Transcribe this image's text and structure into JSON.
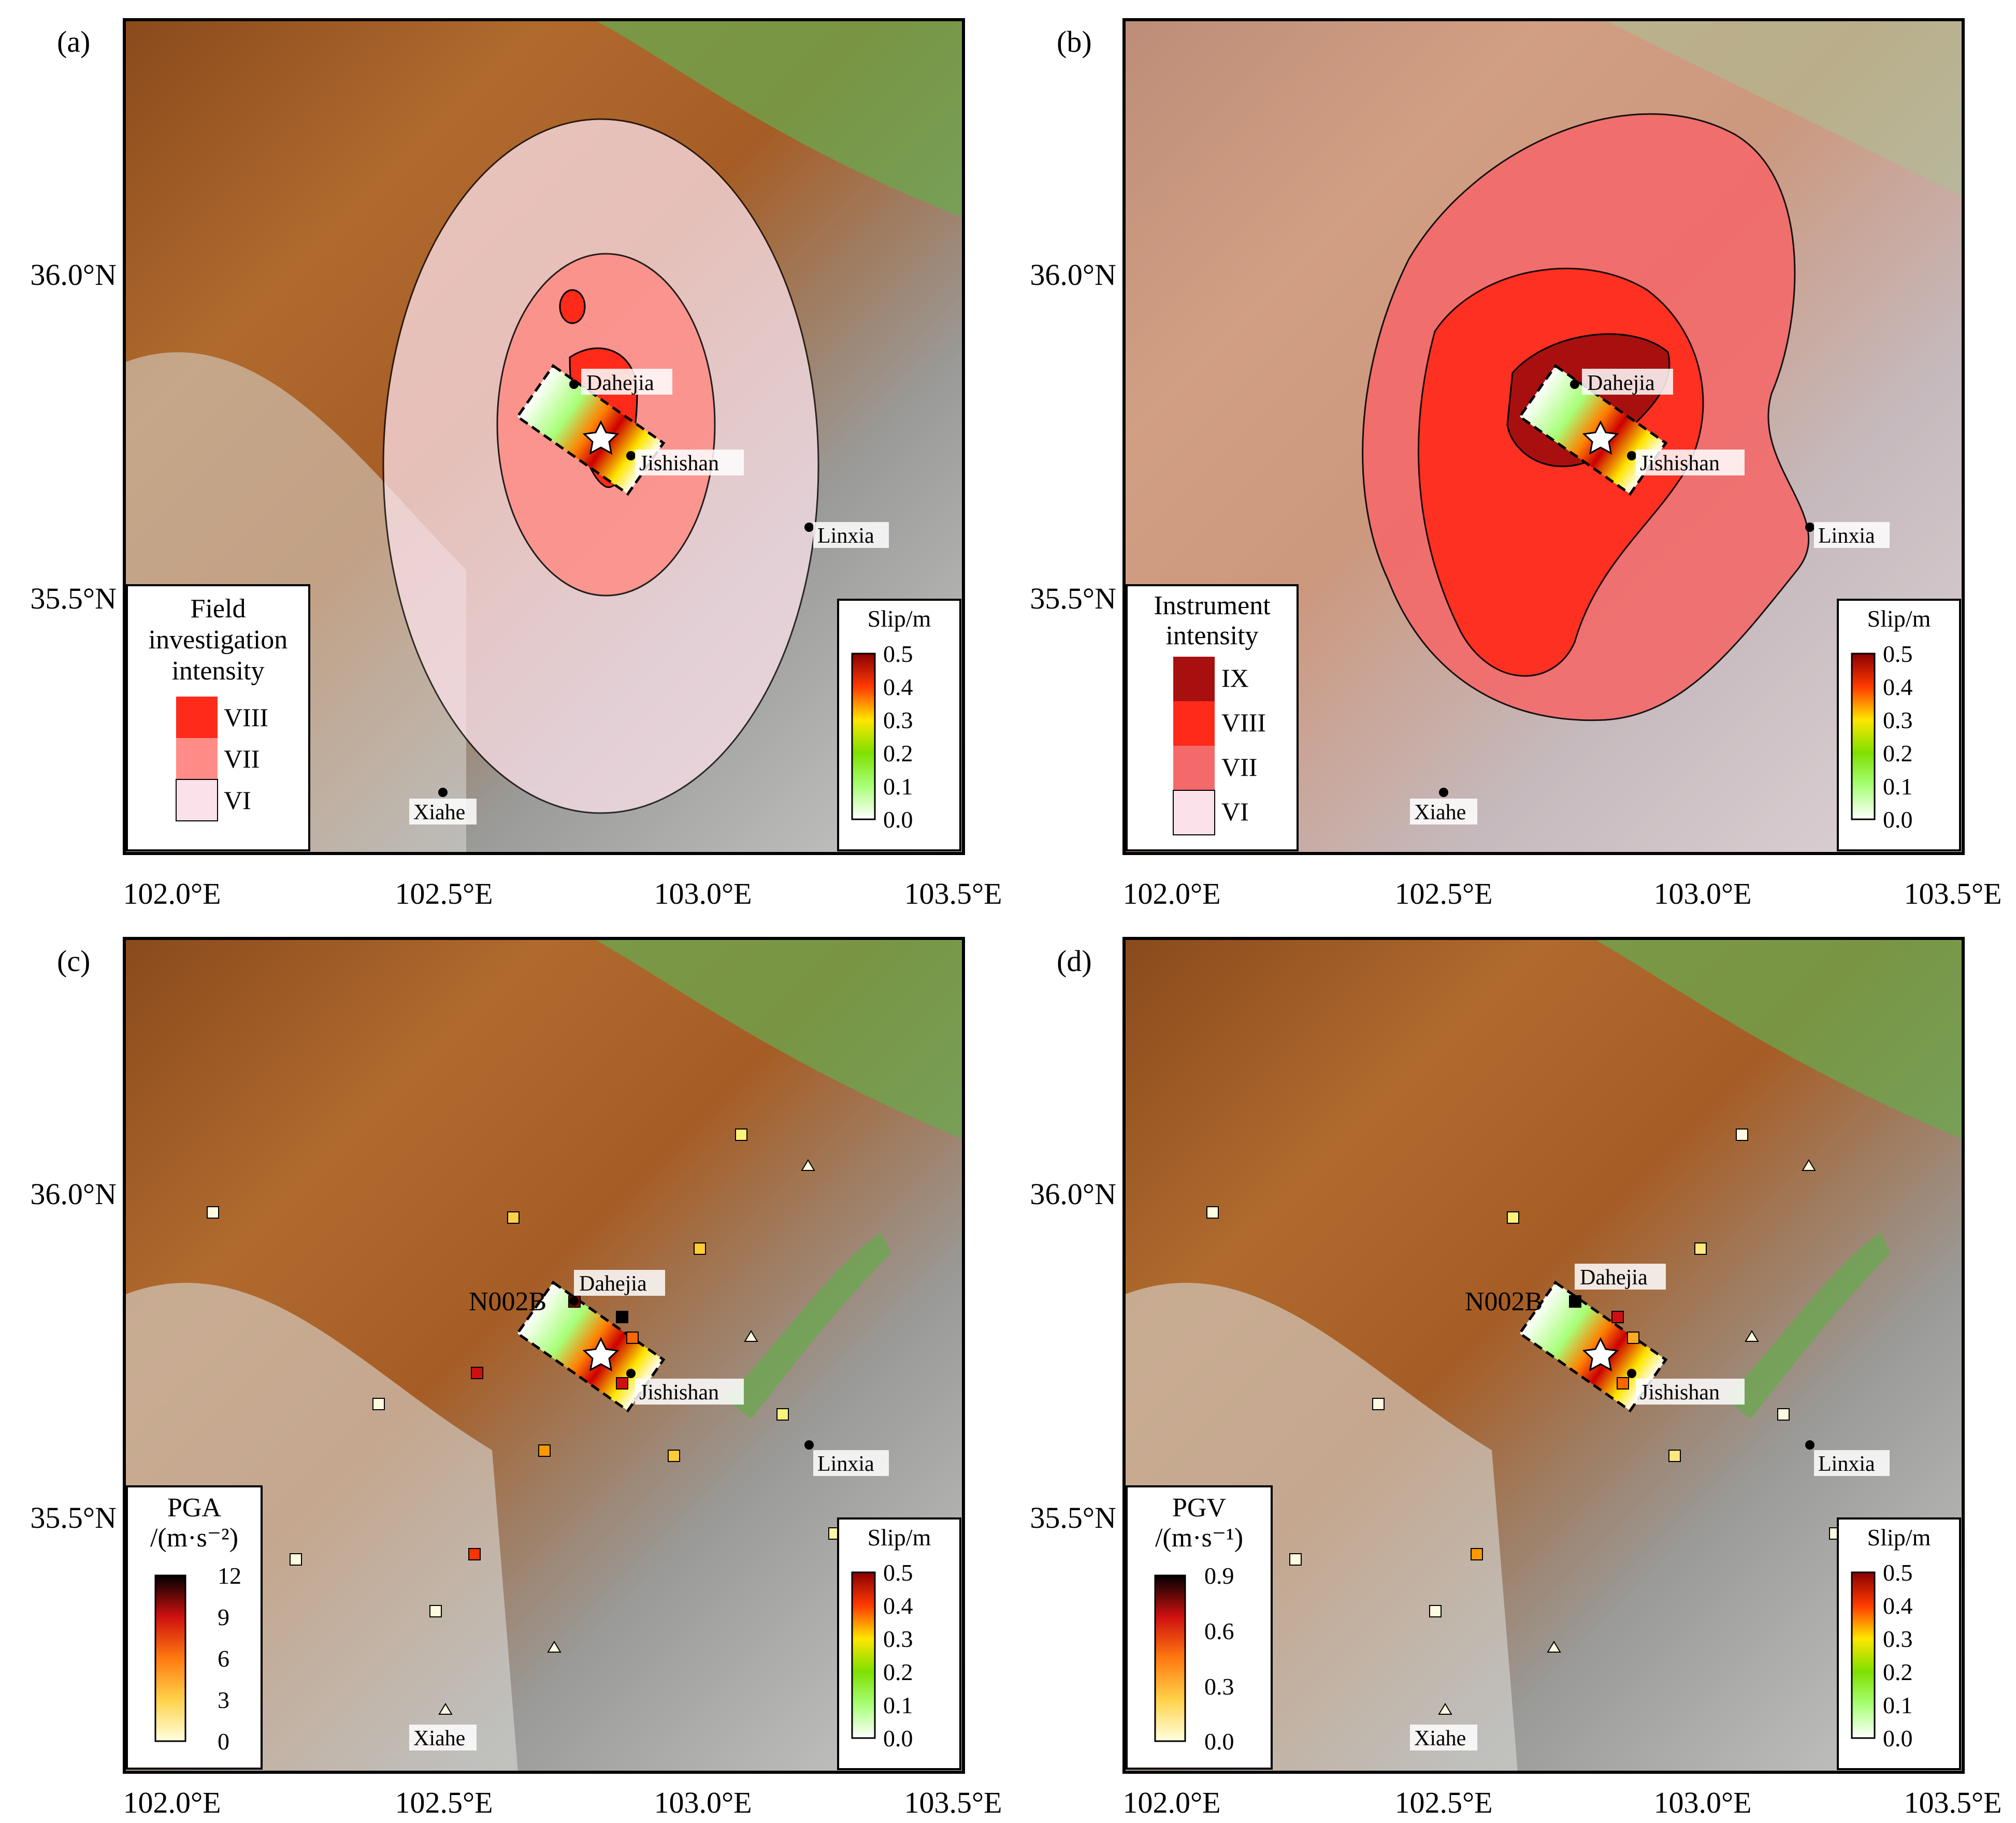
{
  "panels": [
    {
      "id": "a",
      "letter": "(a)",
      "legend": {
        "title_lines": [
          "Field",
          "investigation",
          "intensity"
        ],
        "items": [
          {
            "label": "VIII",
            "color": "#ff2a1a"
          },
          {
            "label": "VII",
            "color": "#ff8c86"
          },
          {
            "label": "VI",
            "color": "#fbe1ea"
          }
        ]
      }
    },
    {
      "id": "b",
      "letter": "(b)",
      "legend": {
        "title_lines": [
          "Instrument",
          "intensity"
        ],
        "items": [
          {
            "label": "IX",
            "color": "#a8100f"
          },
          {
            "label": "VIII",
            "color": "#ff2a1a"
          },
          {
            "label": "VII",
            "color": "#f46a6a"
          },
          {
            "label": "VI",
            "color": "#fbe1ea"
          }
        ]
      }
    },
    {
      "id": "c",
      "letter": "(c)",
      "station_label": "N002B",
      "legend": {
        "title_lines": [
          "PGA",
          "/(m·s⁻²)"
        ],
        "ticks": [
          "12",
          "9",
          "6",
          "3",
          "0"
        ]
      }
    },
    {
      "id": "d",
      "letter": "(d)",
      "station_label": "N002B",
      "legend": {
        "title_lines": [
          "PGV",
          "/(m·s⁻¹)"
        ],
        "ticks": [
          "0.9",
          "0.6",
          "0.3",
          "0.0"
        ]
      }
    }
  ],
  "axes": {
    "x_ticks": [
      "102.0°E",
      "102.5°E",
      "103.0°E",
      "103.5°E"
    ],
    "y_ticks": [
      "36.0°N",
      "35.5°N"
    ]
  },
  "cities": [
    "Dahejia",
    "Jishishan",
    "Linxia",
    "Xiahe"
  ],
  "slip_scale": {
    "title": "Slip/m",
    "ticks": [
      "0.5",
      "0.4",
      "0.3",
      "0.2",
      "0.1",
      "0.0"
    ]
  },
  "colors": {
    "terrain_low": "#6aa84f",
    "terrain_mid": "#a8642c",
    "terrain_high": "#d9d9d9",
    "epicenter": "#ffffff"
  }
}
